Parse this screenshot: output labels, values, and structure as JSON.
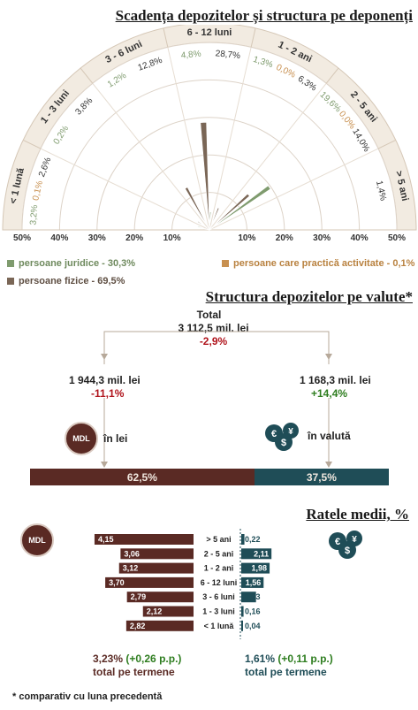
{
  "radar": {
    "title": "Scadența depozitelor și structura pe deponenți",
    "sectors": [
      "< 1 lună",
      "1 - 3 luni",
      "3 - 6 luni",
      "6 - 12 luni",
      "1 - 2 ani",
      "2 - 5 ani",
      "> 5 ani"
    ],
    "axis_ticks": [
      "50%",
      "40%",
      "30%",
      "20%",
      "10%",
      "",
      "10%",
      "20%",
      "30%",
      "40%",
      "50%"
    ]
  },
  "chart_data": [
    {
      "type": "polar-bar",
      "title": "Scadența depozitelor și structura pe deponenți",
      "categories": [
        "< 1 lună",
        "1 - 3 luni",
        "3 - 6 luni",
        "6 - 12 luni",
        "1 - 2 ani",
        "2 - 5 ani",
        "> 5 ani"
      ],
      "rlim": [
        0,
        50
      ],
      "series": [
        {
          "name": "persoane juridice - 30,3%",
          "color": "#7f9b6e",
          "values": [
            3.2,
            0.2,
            1.2,
            4.8,
            1.3,
            19.6,
            0.0
          ]
        },
        {
          "name": "persoane care practică activitate - 0,1%",
          "color": "#c89050",
          "values": [
            0.1,
            0.0,
            0.0,
            0.0,
            0.0,
            0.0,
            0.0
          ]
        },
        {
          "name": "persoane fizice - 69,5%",
          "color": "#7a6656",
          "values": [
            2.6,
            3.8,
            12.8,
            28.7,
            6.3,
            14.0,
            1.4
          ]
        }
      ],
      "labels": [
        [
          "3,2%",
          "0,1%",
          "2,6%"
        ],
        [
          "0,2%",
          "3,8%"
        ],
        [
          "1,2%",
          "12,8%"
        ],
        [
          "4,8%",
          "28,7%"
        ],
        [
          "1,3%",
          "0,0%",
          "6,3%"
        ],
        [
          "19,6%",
          "0,0%",
          "14,0%"
        ],
        [
          "1,4%"
        ]
      ],
      "label_colors": [
        [
          "#7f9b6e",
          "#c89050",
          "#333333"
        ],
        [
          "#7f9b6e",
          "#333333"
        ],
        [
          "#7f9b6e",
          "#333333"
        ],
        [
          "#7f9b6e",
          "#333333"
        ],
        [
          "#7f9b6e",
          "#c89050",
          "#333333"
        ],
        [
          "#7f9b6e",
          "#c89050",
          "#333333"
        ],
        [
          "#333333"
        ]
      ]
    },
    {
      "type": "bar",
      "title": "Structura depozitelor pe valute*",
      "categories": [
        "în lei",
        "în valută"
      ],
      "values": [
        62.5,
        37.5
      ],
      "value_labels": [
        "62,5%",
        "37,5%"
      ],
      "colors": [
        "#5a2a24",
        "#1f4d57"
      ]
    },
    {
      "type": "bar",
      "title": "Ratele medii, %",
      "categories": [
        "> 5 ani",
        "2 - 5 ani",
        "1 - 2 ani",
        "6 - 12 luni",
        "3 - 6 luni",
        "1 - 3 luni",
        "< 1 lună"
      ],
      "series": [
        {
          "name": "MDL",
          "color": "#5a2a24",
          "values": [
            4.15,
            3.06,
            3.12,
            3.7,
            2.79,
            2.12,
            2.82
          ],
          "labels": [
            "4,15",
            "3,06",
            "3,12",
            "3,70",
            "2,79",
            "2,12",
            "2,82"
          ]
        },
        {
          "name": "valută",
          "color": "#1f4d57",
          "values": [
            0.22,
            2.11,
            1.98,
            1.56,
            1.03,
            0.16,
            0.04
          ],
          "labels": [
            "0,22",
            "2,11",
            "1,98",
            "1,56",
            "1,03",
            "0,16",
            "0,04"
          ]
        }
      ]
    }
  ],
  "legend": {
    "juridice": "persoane juridice - 30,3%",
    "activitate": "persoane care practică activitate - 0,1%",
    "fizice": "persoane fizice - 69,5%",
    "colors": {
      "juridice": "#7f9b6e",
      "activitate": "#c89050",
      "fizice": "#7a6656"
    }
  },
  "structure": {
    "title": "Structura depozitelor pe valute*",
    "total_label": "Total",
    "total_value": "3 112,5 mil. lei",
    "total_change": "-2,9%",
    "lei_value": "1 944,3 mil. lei",
    "lei_change": "-11,1%",
    "val_value": "1 168,3 mil. lei",
    "val_change": "+14,4%",
    "lei_label": "în lei",
    "val_label": "în valută",
    "mdl_badge": "MDL",
    "currency_icons": [
      "€",
      "$",
      "¥"
    ],
    "lei_pct": "62,5%",
    "val_pct": "37,5%"
  },
  "rates": {
    "title": "Ratele medii, %",
    "mdl_badge": "MDL",
    "lei_total": "3,23%",
    "lei_change": "(+0,26 p.p.)",
    "val_total": "1,61%",
    "val_change": "(+0,11 p.p.)",
    "total_label": "total pe termene"
  },
  "footnote": "* comparativ cu luna precedentă"
}
